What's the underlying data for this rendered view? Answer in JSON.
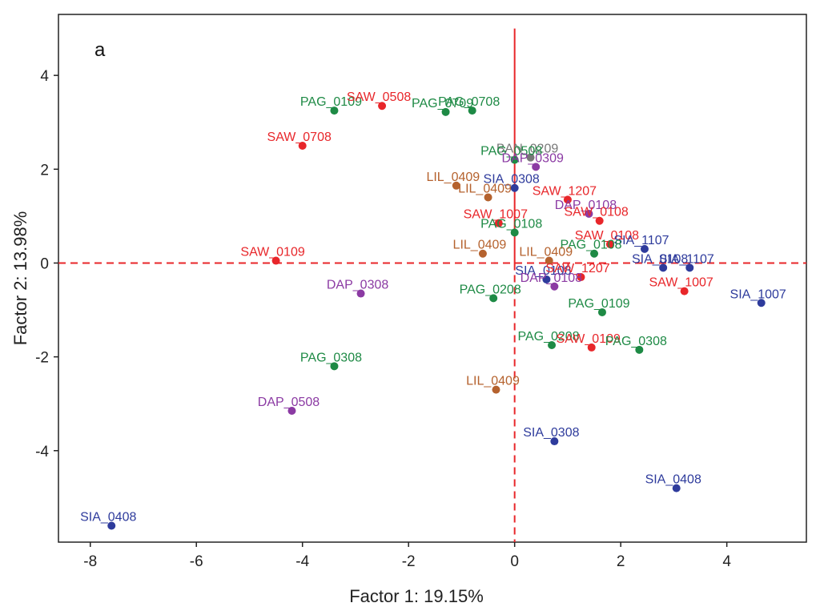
{
  "chart_data": {
    "type": "scatter",
    "panel_label": "a",
    "xlabel": "Factor 1: 19.15%",
    "ylabel": "Factor 2: 13.98%",
    "xlim": [
      -8.6,
      5.5
    ],
    "ylim": [
      -5.95,
      5.3
    ],
    "xticks": [
      "-8",
      "-6",
      "-4",
      "-2",
      "0",
      "2",
      "4"
    ],
    "yticks": [
      "-4",
      "-2",
      "0",
      "2",
      "4"
    ],
    "colors": {
      "PAG": "#1e8a45",
      "SAW": "#e8262a",
      "SIA": "#2e3b9c",
      "DAP": "#8b3aa3",
      "LIL": "#b5622e",
      "BAN": "#777777",
      "reference": "#e8262a"
    },
    "points": [
      {
        "label": "PAG_0109",
        "group": "PAG",
        "x": -3.4,
        "y": 3.25
      },
      {
        "label": "SAW_0508",
        "group": "SAW",
        "x": -2.5,
        "y": 3.35
      },
      {
        "label": "PAG_0709",
        "group": "PAG",
        "x": -1.3,
        "y": 3.22
      },
      {
        "label": "PAG_0708",
        "group": "PAG",
        "x": -0.8,
        "y": 3.25
      },
      {
        "label": "SAW_0708",
        "group": "SAW",
        "x": -4.0,
        "y": 2.5
      },
      {
        "label": "BAN_0209",
        "group": "BAN",
        "x": 0.3,
        "y": 2.25
      },
      {
        "label": "PAG_0508",
        "group": "PAG",
        "x": 0.0,
        "y": 2.2
      },
      {
        "label": "DAP_0309",
        "group": "DAP",
        "x": 0.4,
        "y": 2.05
      },
      {
        "label": "LIL_0409",
        "group": "LIL",
        "x": -1.1,
        "y": 1.65
      },
      {
        "label": "SIA_0308",
        "group": "SIA",
        "x": 0.0,
        "y": 1.6
      },
      {
        "label": "LIL_0409",
        "group": "LIL",
        "x": -0.5,
        "y": 1.4
      },
      {
        "label": "SAW_1207",
        "group": "SAW",
        "x": 1.0,
        "y": 1.35
      },
      {
        "label": "DAP_0108",
        "group": "DAP",
        "x": 1.4,
        "y": 1.05
      },
      {
        "label": "SAW_1007",
        "group": "SAW",
        "x": -0.3,
        "y": 0.85
      },
      {
        "label": "SAW_0108",
        "group": "SAW",
        "x": 1.6,
        "y": 0.9
      },
      {
        "label": "PAG_0108",
        "group": "PAG",
        "x": 0.0,
        "y": 0.65
      },
      {
        "label": "SAW_0108",
        "group": "SAW",
        "x": 1.8,
        "y": 0.4
      },
      {
        "label": "SIA_1107",
        "group": "SIA",
        "x": 2.45,
        "y": 0.3
      },
      {
        "label": "LIL_0409",
        "group": "LIL",
        "x": -0.6,
        "y": 0.2
      },
      {
        "label": "PAG_0108",
        "group": "PAG",
        "x": 1.5,
        "y": 0.2
      },
      {
        "label": "SAW_0109",
        "group": "SAW",
        "x": -4.5,
        "y": 0.05
      },
      {
        "label": "LIL_0409",
        "group": "LIL",
        "x": 0.65,
        "y": 0.05
      },
      {
        "label": "SIA_0108",
        "group": "SIA",
        "x": 2.8,
        "y": -0.1
      },
      {
        "label": "SIA_1107",
        "group": "SIA",
        "x": 3.3,
        "y": -0.1
      },
      {
        "label": "SIA_0108",
        "group": "SIA",
        "x": 0.6,
        "y": -0.35
      },
      {
        "label": "SAW_1207",
        "group": "SAW",
        "x": 1.25,
        "y": -0.3
      },
      {
        "label": "DAP_0108",
        "group": "DAP",
        "x": 0.75,
        "y": -0.5
      },
      {
        "label": "SAW_1007",
        "group": "SAW",
        "x": 3.2,
        "y": -0.6
      },
      {
        "label": "SIA_1007",
        "group": "SIA",
        "x": 4.65,
        "y": -0.85
      },
      {
        "label": "DAP_0308",
        "group": "DAP",
        "x": -2.9,
        "y": -0.65
      },
      {
        "label": "PAG_0208",
        "group": "PAG",
        "x": -0.4,
        "y": -0.75
      },
      {
        "label": "PAG_0109",
        "group": "PAG",
        "x": 1.65,
        "y": -1.05
      },
      {
        "label": "PAG_0208",
        "group": "PAG",
        "x": 0.7,
        "y": -1.75
      },
      {
        "label": "SAW_0109",
        "group": "SAW",
        "x": 1.45,
        "y": -1.8
      },
      {
        "label": "PAG_0308",
        "group": "PAG",
        "x": 2.35,
        "y": -1.85
      },
      {
        "label": "PAG_0308",
        "group": "PAG",
        "x": -3.4,
        "y": -2.2
      },
      {
        "label": "LIL_0409",
        "group": "LIL",
        "x": -0.35,
        "y": -2.7
      },
      {
        "label": "DAP_0508",
        "group": "DAP",
        "x": -4.2,
        "y": -3.15
      },
      {
        "label": "SIA_0308",
        "group": "SIA",
        "x": 0.75,
        "y": -3.8
      },
      {
        "label": "SIA_0408",
        "group": "SIA",
        "x": 3.05,
        "y": -4.8
      },
      {
        "label": "SIA_0408",
        "group": "SIA",
        "x": -7.6,
        "y": -5.6
      }
    ]
  }
}
